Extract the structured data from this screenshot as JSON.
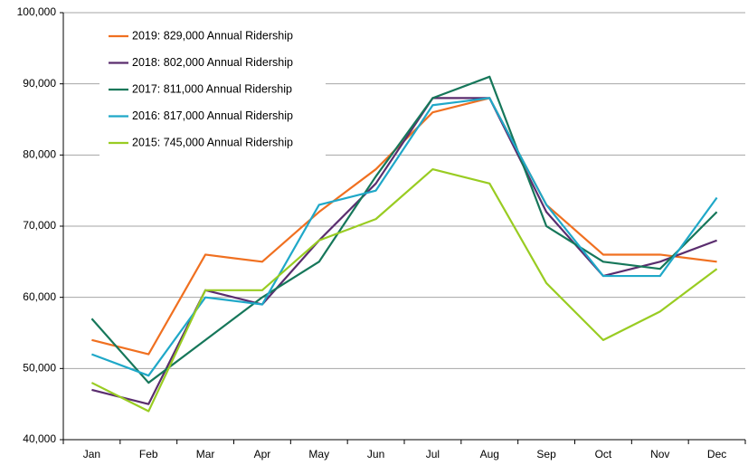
{
  "chart_data": {
    "type": "line",
    "categories": [
      "Jan",
      "Feb",
      "Mar",
      "Apr",
      "May",
      "Jun",
      "Jul",
      "Aug",
      "Sep",
      "Oct",
      "Nov",
      "Dec"
    ],
    "series": [
      {
        "name": "2019: 829,000 Annual Ridership",
        "color": "#f07020",
        "values": [
          54000,
          52000,
          66000,
          65000,
          72000,
          78000,
          86000,
          88000,
          73000,
          66000,
          66000,
          65000
        ]
      },
      {
        "name": "2018: 802,000 Annual Ridership",
        "color": "#5a2d6e",
        "values": [
          47000,
          45000,
          61000,
          59000,
          68000,
          76000,
          88000,
          88000,
          72000,
          63000,
          65000,
          68000
        ]
      },
      {
        "name": "2017: 811,000 Annual Ridership",
        "color": "#16775a",
        "values": [
          57000,
          48000,
          54000,
          60000,
          65000,
          77000,
          88000,
          91000,
          70000,
          65000,
          64000,
          72000
        ]
      },
      {
        "name": "2016: 817,000 Annual Ridership",
        "color": "#1fa8c8",
        "values": [
          52000,
          49000,
          60000,
          59000,
          73000,
          75000,
          87000,
          88000,
          73000,
          63000,
          63000,
          74000
        ]
      },
      {
        "name": "2015: 745,000 Annual Ridership",
        "color": "#99cc22",
        "values": [
          48000,
          44000,
          61000,
          61000,
          68000,
          71000,
          78000,
          76000,
          62000,
          54000,
          58000,
          64000
        ]
      }
    ],
    "ylim": [
      40000,
      100000
    ],
    "yticks": [
      {
        "value": 40000,
        "label": "40,000"
      },
      {
        "value": 50000,
        "label": "50,000"
      },
      {
        "value": 60000,
        "label": "60,000"
      },
      {
        "value": 70000,
        "label": "70,000"
      },
      {
        "value": 80000,
        "label": "80,000"
      },
      {
        "value": 90000,
        "label": "90,000"
      },
      {
        "value": 100000,
        "label": "100,000"
      }
    ],
    "grid": true,
    "legend": "upper left"
  }
}
